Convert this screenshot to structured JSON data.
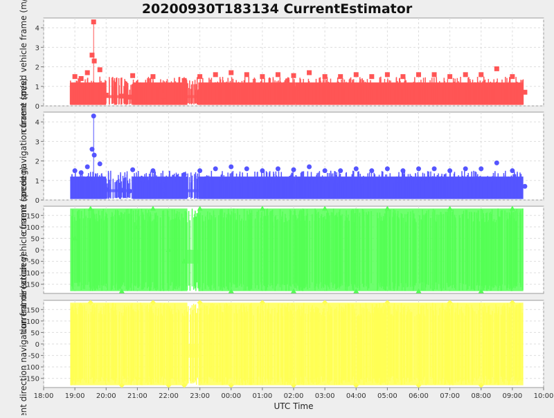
{
  "title": "20200930T183134 CurrentEstimator",
  "xlabel": "UTC Time",
  "x_ticks": [
    "18:00",
    "19:00",
    "20:00",
    "21:00",
    "22:00",
    "23:00",
    "00:00",
    "01:00",
    "02:00",
    "03:00",
    "04:00",
    "05:00",
    "06:00",
    "07:00",
    "08:00",
    "09:00",
    "10:00"
  ],
  "x_range_hours": [
    18,
    34
  ],
  "chart_data": [
    {
      "type": "scatter",
      "ylabel": "current speed vehicle frame (m/s)",
      "ylim": [
        0,
        4.5
      ],
      "yticks": [
        0,
        1,
        2,
        3,
        4
      ],
      "color": "#ff5555",
      "marker": "square",
      "x": [
        19.0,
        19.2,
        19.4,
        19.55,
        19.6,
        19.62,
        19.8,
        20.0,
        20.5,
        20.75,
        20.85,
        21.1,
        21.5,
        21.85,
        22.5,
        23.0,
        23.5,
        24.0,
        24.5,
        25.0,
        25.5,
        26.0,
        26.5,
        27.0,
        27.5,
        28.0,
        28.5,
        29.0,
        29.5,
        30.0,
        30.5,
        31.0,
        31.5,
        32.0,
        32.5,
        33.0,
        33.4
      ],
      "y": [
        1.5,
        1.4,
        1.7,
        2.6,
        4.3,
        2.3,
        1.85,
        0.55,
        0.5,
        0.45,
        1.55,
        1.05,
        1.5,
        0.5,
        1.3,
        1.5,
        1.6,
        1.7,
        1.6,
        1.5,
        1.6,
        1.55,
        1.7,
        1.5,
        1.5,
        1.6,
        1.5,
        1.6,
        1.5,
        1.6,
        1.6,
        1.5,
        1.6,
        1.6,
        1.9,
        1.5,
        0.7
      ]
    },
    {
      "type": "scatter",
      "ylabel": "current speed navigation frame (m/s)",
      "ylim": [
        0,
        4.5
      ],
      "yticks": [
        0,
        1,
        2,
        3,
        4
      ],
      "color": "#5555ff",
      "marker": "circle",
      "x": [
        19.0,
        19.2,
        19.4,
        19.55,
        19.6,
        19.62,
        19.8,
        20.0,
        20.5,
        20.75,
        20.85,
        21.1,
        21.5,
        21.85,
        22.5,
        23.0,
        23.5,
        24.0,
        24.5,
        25.0,
        25.5,
        26.0,
        26.5,
        27.0,
        27.5,
        28.0,
        28.5,
        29.0,
        29.5,
        30.0,
        30.5,
        31.0,
        31.5,
        32.0,
        32.5,
        33.0,
        33.4
      ],
      "y": [
        1.5,
        1.4,
        1.7,
        2.6,
        4.3,
        2.3,
        1.85,
        0.55,
        0.5,
        0.45,
        1.55,
        1.05,
        1.5,
        0.5,
        1.3,
        1.5,
        1.6,
        1.7,
        1.6,
        1.5,
        1.6,
        1.55,
        1.7,
        1.5,
        1.5,
        1.6,
        1.5,
        1.6,
        1.5,
        1.6,
        1.6,
        1.5,
        1.6,
        1.6,
        1.9,
        1.5,
        0.7
      ]
    },
    {
      "type": "scatter",
      "ylabel": "current direction vehicle frame (arcdeg)",
      "ylim": [
        -190,
        190
      ],
      "yticks": [
        -150,
        -100,
        -50,
        0,
        50,
        100,
        150
      ],
      "color": "#55ff55",
      "marker": "triangle",
      "x": [
        19.0,
        19.5,
        20.5,
        21.0,
        21.5,
        22.0,
        22.5,
        23.0,
        24.0,
        25.0,
        26.0,
        27.0,
        28.0,
        29.0,
        30.0,
        31.0,
        32.0,
        33.0
      ],
      "y": [
        50,
        180,
        -180,
        100,
        180,
        0,
        -50,
        180,
        -180,
        180,
        -180,
        180,
        -180,
        180,
        -180,
        180,
        -180,
        180
      ]
    },
    {
      "type": "scatter",
      "ylabel": "current direction navigation frame (arcdeg)",
      "ylim": [
        -190,
        190
      ],
      "yticks": [
        -150,
        -100,
        -50,
        0,
        50,
        100,
        150
      ],
      "color": "#ffff55",
      "marker": "diamond",
      "x": [
        19.0,
        19.5,
        20.5,
        21.0,
        21.5,
        22.0,
        22.5,
        23.0,
        24.0,
        25.0,
        26.0,
        27.0,
        28.0,
        29.0,
        30.0,
        31.0,
        32.0,
        33.0
      ],
      "y": [
        100,
        180,
        -180,
        -150,
        180,
        -180,
        -180,
        180,
        -180,
        180,
        -180,
        180,
        -180,
        180,
        -180,
        180,
        -180,
        180
      ]
    }
  ]
}
